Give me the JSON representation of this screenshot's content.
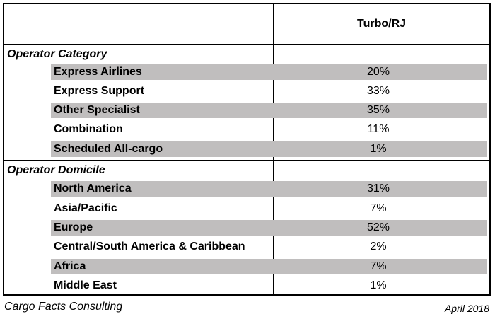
{
  "chart_data": {
    "type": "table",
    "column_header": "Turbo/RJ",
    "sections": [
      {
        "title": "Operator Category",
        "rows": [
          {
            "label": "Express Airlines",
            "value": "20%"
          },
          {
            "label": "Express Support",
            "value": "33%"
          },
          {
            "label": "Other Specialist",
            "value": "35%"
          },
          {
            "label": "Combination",
            "value": "11%"
          },
          {
            "label": "Scheduled All-cargo",
            "value": "1%"
          }
        ]
      },
      {
        "title": "Operator Domicile",
        "rows": [
          {
            "label": "North America",
            "value": "31%"
          },
          {
            "label": "Asia/Pacific",
            "value": "7%"
          },
          {
            "label": "Europe",
            "value": "52%"
          },
          {
            "label": "Central/South America & Caribbean",
            "value": "2%"
          },
          {
            "label": "Africa",
            "value": "7%"
          },
          {
            "label": "Middle East",
            "value": "1%"
          }
        ]
      }
    ]
  },
  "footer": {
    "source": "Cargo Facts Consulting",
    "date": "April 2018"
  },
  "colors": {
    "row_shade": "#c0bebe",
    "border": "#000000"
  }
}
